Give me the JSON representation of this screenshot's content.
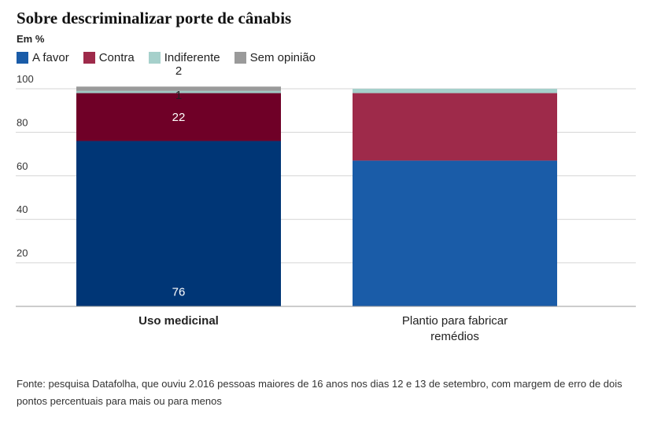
{
  "chart_data": {
    "type": "bar",
    "stacked": true,
    "title": "Sobre descriminalizar porte de cânabis",
    "subtitle": "Em %",
    "categories": [
      "Uso medicinal",
      "Plantio para fabricar remédios"
    ],
    "series": [
      {
        "name": "A favor",
        "color": "#003676",
        "color_alt": "#1a5ca8",
        "values": [
          76,
          67
        ],
        "labels": [
          "76",
          ""
        ]
      },
      {
        "name": "Contra",
        "color": "#6f0027",
        "color_alt": "#9e2a4a",
        "values": [
          22,
          31
        ],
        "labels": [
          "22",
          ""
        ]
      },
      {
        "name": "Indiferente",
        "color": "#9fc9c4",
        "color_alt": "#a6d0cb",
        "values": [
          1,
          2
        ],
        "labels": [
          "1",
          ""
        ]
      },
      {
        "name": "Sem opinião",
        "color": "#9a9a9a",
        "color_alt": "#9a9a9a",
        "values": [
          2,
          0
        ],
        "labels": [
          "2",
          ""
        ]
      }
    ],
    "highlighted_category": "Uso medicinal",
    "yticks": [
      20,
      40,
      60,
      80,
      100
    ],
    "ylim": [
      0,
      100
    ],
    "grid": true,
    "legend": "top-left"
  },
  "footnote": "Fonte: pesquisa Datafolha, que ouviu 2.016 pessoas maiores de 16 anos nos dias 12 e 13 de setembro, com margem de erro de dois pontos percentuais para mais ou para menos"
}
